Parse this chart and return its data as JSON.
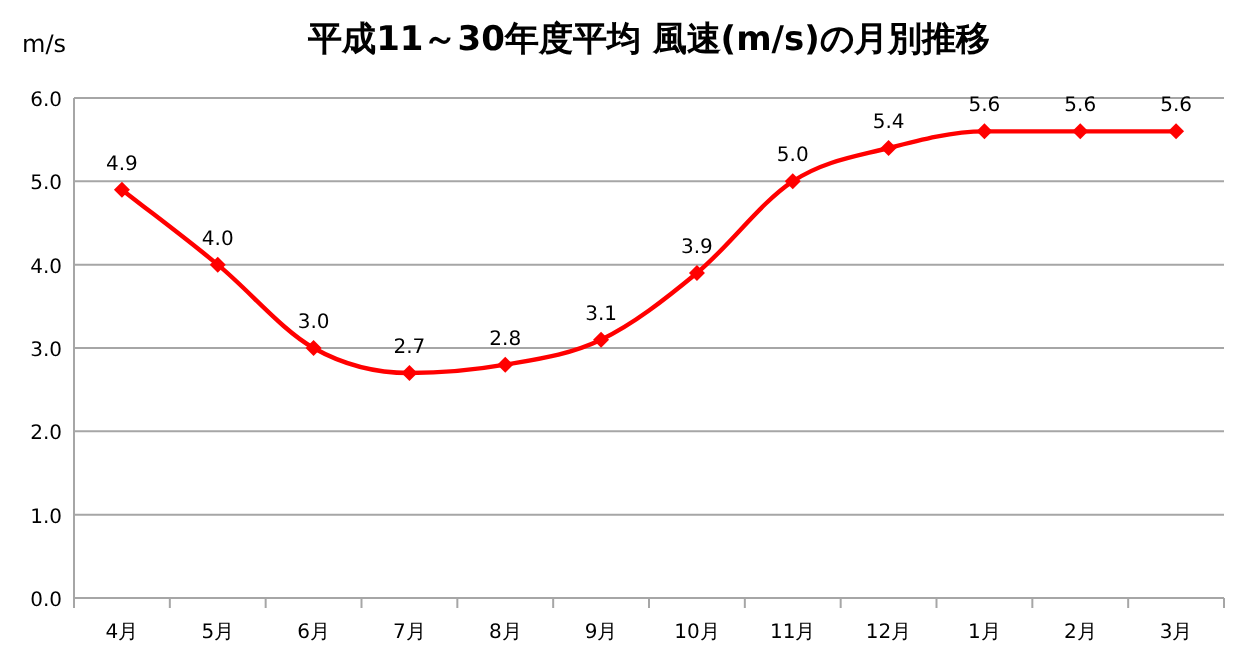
{
  "chart_data": {
    "type": "line",
    "title": "平成11～30年度平均  風速(m/s)の月別推移",
    "ylabel": "m/s",
    "categories": [
      "4月",
      "5月",
      "6月",
      "7月",
      "8月",
      "9月",
      "10月",
      "11月",
      "12月",
      "1月",
      "2月",
      "3月"
    ],
    "series": [
      {
        "color": "#ff0000",
        "values": [
          4.9,
          4.0,
          3.0,
          2.7,
          2.8,
          3.1,
          3.9,
          5.0,
          5.4,
          5.6,
          5.6,
          5.6
        ],
        "value_labels": [
          "4.9",
          "4.0",
          "3.0",
          "2.7",
          "2.8",
          "3.1",
          "3.9",
          "5.0",
          "5.4",
          "5.6",
          "5.6",
          "5.6"
        ]
      }
    ],
    "ylim": [
      0,
      6
    ],
    "yticks": [
      {
        "value": 0,
        "label": "0.0"
      },
      {
        "value": 1,
        "label": "1.0"
      },
      {
        "value": 2,
        "label": "2.0"
      },
      {
        "value": 3,
        "label": "3.0"
      },
      {
        "value": 4,
        "label": "4.0"
      },
      {
        "value": 5,
        "label": "5.0"
      },
      {
        "value": 6,
        "label": "6.0"
      }
    ],
    "grid": "y",
    "marker": "diamond",
    "line_style": "solid"
  }
}
